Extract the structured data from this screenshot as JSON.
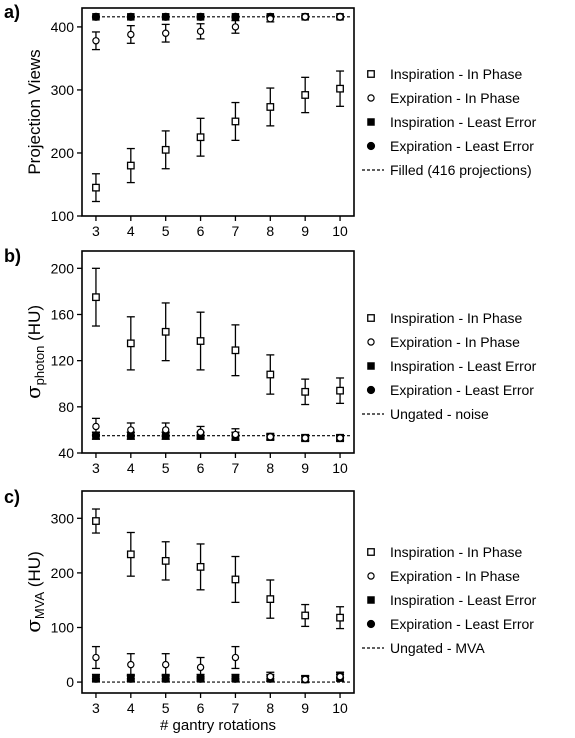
{
  "xlabel": "# gantry rotations",
  "chart_data": [
    {
      "panel": "a)",
      "type": "scatter",
      "ylabel": "Projection Views",
      "ylabel_sub": "",
      "x": [
        3,
        4,
        5,
        6,
        7,
        8,
        9,
        10
      ],
      "xlim": [
        2.6,
        10.4
      ],
      "ylim": [
        100,
        430
      ],
      "yticks": [
        100,
        200,
        300,
        400
      ],
      "series": [
        {
          "name": "Inspiration - In Phase",
          "marker": "open-square",
          "values": [
            145,
            180,
            205,
            225,
            250,
            273,
            292,
            302
          ],
          "errors": [
            22,
            27,
            30,
            30,
            30,
            30,
            28,
            28
          ]
        },
        {
          "name": "Expiration - In Phase",
          "marker": "open-circle",
          "values": [
            378,
            388,
            390,
            393,
            400,
            413,
            416,
            416
          ],
          "errors": [
            14,
            14,
            14,
            12,
            10,
            5,
            2,
            1
          ]
        },
        {
          "name": "Inspiration - Least Error",
          "marker": "filled-square",
          "values": [
            416,
            416,
            416,
            416,
            416,
            416,
            416,
            416
          ],
          "errors": [
            0,
            0,
            0,
            0,
            0,
            0,
            0,
            0
          ]
        },
        {
          "name": "Expiration - Least Error",
          "marker": "filled-circle",
          "values": [
            416,
            416,
            416,
            416,
            416,
            416,
            416,
            416
          ],
          "errors": [
            0,
            0,
            0,
            0,
            0,
            0,
            0,
            0
          ]
        }
      ],
      "reference": {
        "name": "Filled (416 projections)",
        "value": 416
      }
    },
    {
      "panel": "b)",
      "type": "scatter",
      "ylabel": "σ",
      "ylabel_sub": "photon",
      "ylabel_unit": " (HU)",
      "x": [
        3,
        4,
        5,
        6,
        7,
        8,
        9,
        10
      ],
      "xlim": [
        2.6,
        10.4
      ],
      "ylim": [
        40,
        215
      ],
      "yticks": [
        40,
        80,
        120,
        160,
        200
      ],
      "series": [
        {
          "name": "Inspiration - In Phase",
          "marker": "open-square",
          "values": [
            175,
            135,
            145,
            137,
            129,
            108,
            93,
            94
          ],
          "errors": [
            25,
            23,
            25,
            25,
            22,
            17,
            11,
            11
          ]
        },
        {
          "name": "Expiration - In Phase",
          "marker": "open-circle",
          "values": [
            63,
            60,
            60,
            58,
            56,
            54,
            53,
            53
          ],
          "errors": [
            7,
            6,
            6,
            5,
            5,
            3,
            3,
            3
          ]
        },
        {
          "name": "Inspiration - Least Error",
          "marker": "filled-square",
          "values": [
            55,
            55,
            55,
            55,
            55,
            54,
            53,
            53
          ],
          "errors": [
            3,
            3,
            3,
            3,
            3,
            2,
            2,
            2
          ]
        },
        {
          "name": "Expiration - Least Error",
          "marker": "filled-circle",
          "values": [
            55,
            55,
            55,
            55,
            55,
            54,
            53,
            53
          ],
          "errors": [
            3,
            3,
            3,
            3,
            3,
            2,
            2,
            2
          ]
        }
      ],
      "reference": {
        "name": "Ungated - noise",
        "value": 55
      }
    },
    {
      "panel": "c)",
      "type": "scatter",
      "ylabel": "σ",
      "ylabel_sub": "MVA",
      "ylabel_unit": " (HU)",
      "x": [
        3,
        4,
        5,
        6,
        7,
        8,
        9,
        10
      ],
      "xlim": [
        2.6,
        10.4
      ],
      "ylim": [
        -20,
        350
      ],
      "yticks": [
        0,
        100,
        200,
        300
      ],
      "series": [
        {
          "name": "Inspiration - In Phase",
          "marker": "open-square",
          "values": [
            295,
            234,
            222,
            211,
            188,
            152,
            122,
            118
          ],
          "errors": [
            22,
            40,
            35,
            42,
            42,
            35,
            20,
            20
          ]
        },
        {
          "name": "Expiration - In Phase",
          "marker": "open-circle",
          "values": [
            45,
            32,
            32,
            27,
            45,
            10,
            5,
            10
          ],
          "errors": [
            20,
            20,
            20,
            18,
            20,
            8,
            6,
            8
          ]
        },
        {
          "name": "Inspiration - Least Error",
          "marker": "filled-square",
          "values": [
            8,
            8,
            8,
            8,
            8,
            8,
            6,
            10
          ],
          "errors": [
            6,
            6,
            6,
            6,
            6,
            6,
            6,
            8
          ]
        },
        {
          "name": "Expiration - Least Error",
          "marker": "filled-circle",
          "values": [
            6,
            6,
            6,
            6,
            6,
            6,
            5,
            8
          ],
          "errors": [
            5,
            5,
            5,
            5,
            5,
            5,
            5,
            6
          ]
        }
      ],
      "reference": {
        "name": "Ungated - MVA",
        "value": 0
      }
    }
  ]
}
